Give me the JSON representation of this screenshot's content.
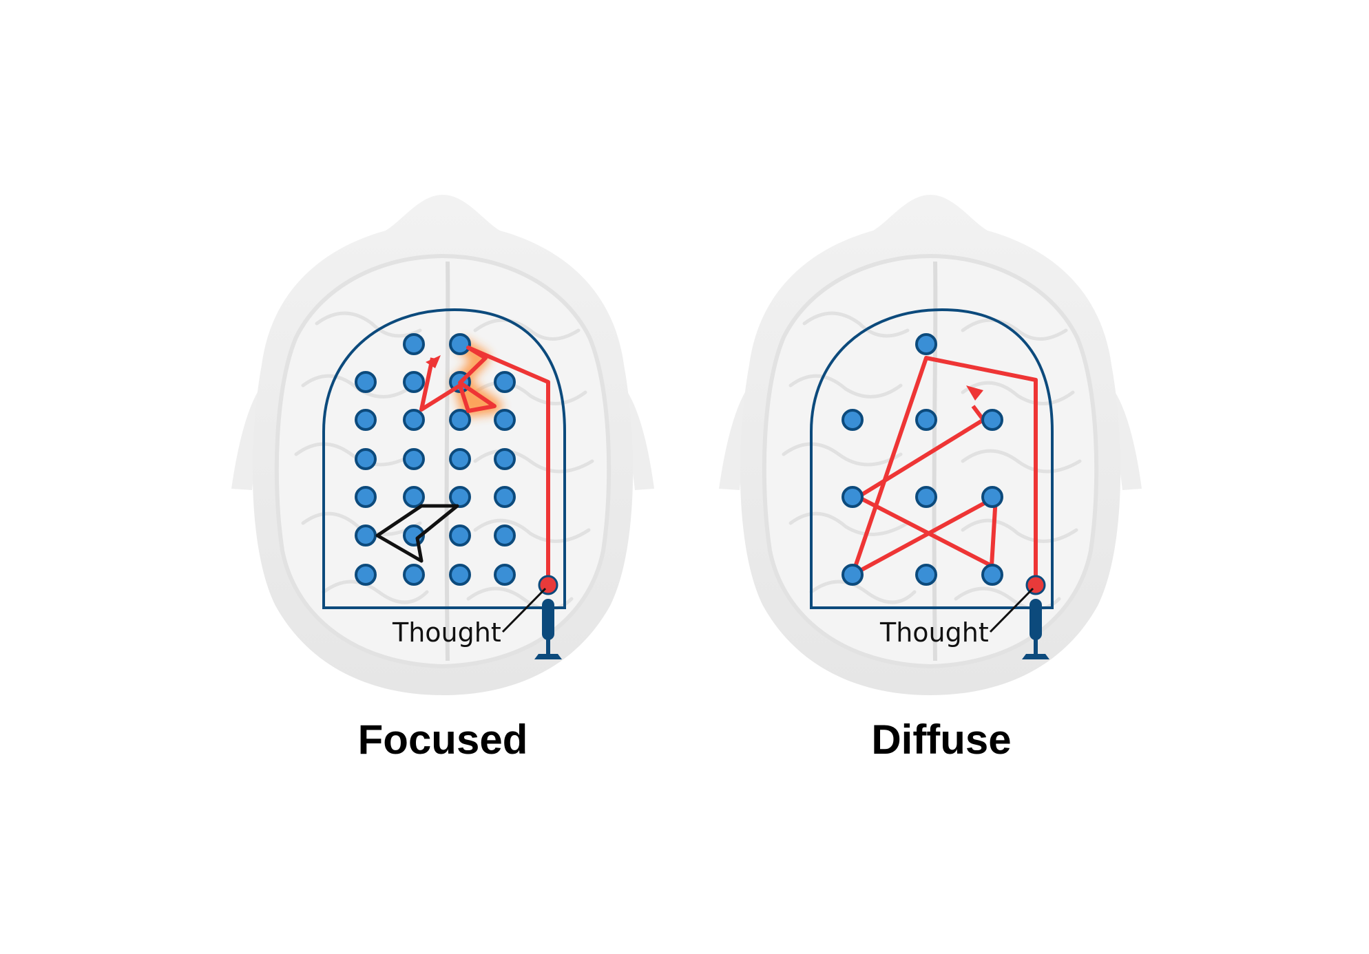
{
  "colors": {
    "background": "#ffffff",
    "brain": "#eeeeee",
    "brain_fold": "#d6d6d6",
    "frame": "#0c4a7c",
    "node_fill": "#3a8fd6",
    "node_stroke": "#0c4a7c",
    "path": "#ee3535",
    "glow": "#ff8a2a",
    "shape": "#111111",
    "start_node": "#e83a3a"
  },
  "panels": [
    {
      "id": "focused",
      "title": "Focused",
      "thought_label": "Thought",
      "icons": [
        "brain-icon",
        "pinball-plunger-icon"
      ]
    },
    {
      "id": "diffuse",
      "title": "Diffuse",
      "thought_label": "Thought",
      "icons": [
        "brain-icon",
        "pinball-plunger-icon"
      ]
    }
  ]
}
